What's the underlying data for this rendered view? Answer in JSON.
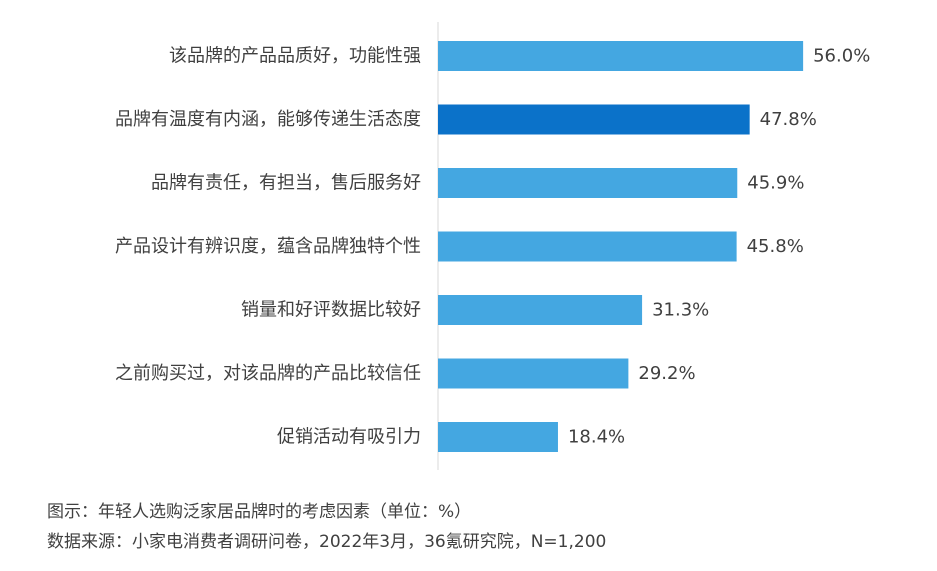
{
  "caption": "图示：年轻人选购泛家居品牌时的考虑因素（单位：%）",
  "source": "数据来源：小家电消费者调研问卷，2022年3月，36氪研究院，N=1,200",
  "colors": {
    "bar": "#44a7e1",
    "highlight": "#0b72c9",
    "axis": "#d9d9d9"
  },
  "chart_data": {
    "type": "bar",
    "orientation": "horizontal",
    "categories": [
      "该品牌的产品品质好，功能性强",
      "品牌有温度有内涵，能够传递生活态度",
      "品牌有责任，有担当，售后服务好",
      "产品设计有辨识度，蕴含品牌独特个性",
      "销量和好评数据比较好",
      "之前购买过，对该品牌的产品比较信任",
      "促销活动有吸引力"
    ],
    "values": [
      56.0,
      47.8,
      45.9,
      45.8,
      31.3,
      29.2,
      18.4
    ],
    "value_labels": [
      "56.0%",
      "47.8%",
      "45.9%",
      "45.8%",
      "31.3%",
      "29.2%",
      "18.4%"
    ],
    "highlight_index": 1,
    "xlim": [
      0,
      60
    ],
    "grid": false,
    "legend": "none"
  }
}
